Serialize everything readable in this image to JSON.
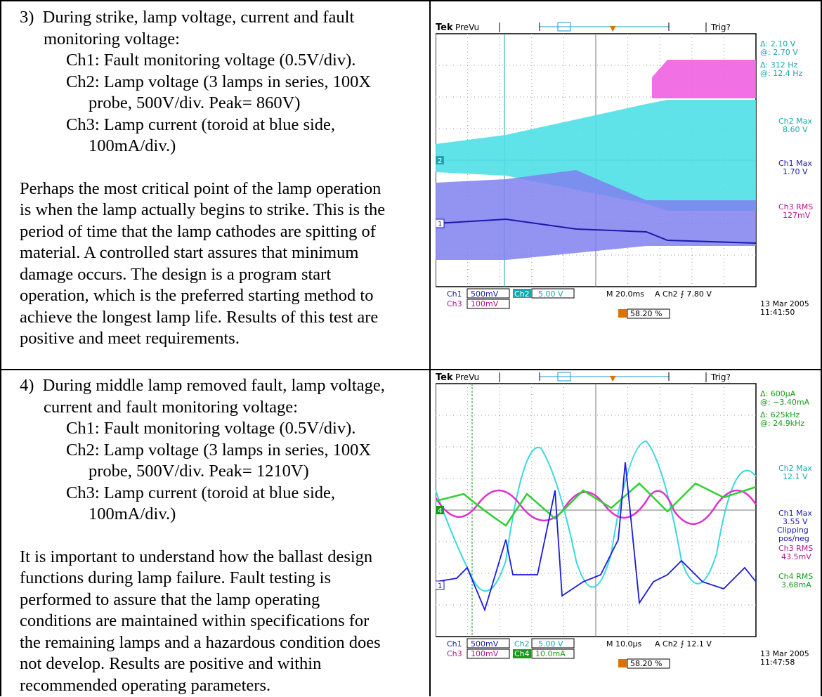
{
  "sections": [
    {
      "heading_num": "3)",
      "heading_l1": "During strike, lamp voltage, current and fault",
      "heading_l2": "monitoring voltage:",
      "ch1": "Ch1: Fault monitoring voltage (0.5V/div).",
      "ch2_l1": "Ch2: Lamp voltage (3 lamps in series, 100X",
      "ch2_l2": "probe, 500V/div. Peak= 860V)",
      "ch3_l1": "Ch3: Lamp current (toroid at blue side,",
      "ch3_l2": "100mA/div.)",
      "para": [
        "Perhaps the most critical point of the lamp operation",
        "is when the lamp actually begins to strike. This is the",
        "period of time that the lamp cathodes are spitting of",
        "material. A controlled start assures that minimum",
        "damage occurs. The design is a program start",
        "operation, which is the preferred starting method to",
        "achieve the longest lamp life.  Results of this test are",
        "positive and meet requirements."
      ],
      "scope": {
        "brand": "Tek",
        "mode": "PreVu",
        "trig": "Trig?",
        "cursor_delta": "Δ:    2.10 V",
        "cursor_at": "@:    2.70 V",
        "freq_delta": "Δ:    312 Hz",
        "freq_at": "@:   12.4 Hz",
        "meas": [
          {
            "label": "Ch2 Max",
            "value": "8.60 V",
            "color": "#1aa7b0"
          },
          {
            "label": "Ch1 Max",
            "value": "1.70 V",
            "color": "#1a1aa8"
          },
          {
            "label": "Ch3 RMS",
            "value": "127mV",
            "color": "#b0168e"
          }
        ],
        "ch1_scale": "500mV",
        "ch2_scale": "5.00 V",
        "ch3_scale": "100mV",
        "ch4_scale": "",
        "timebase": "M 20.0ms",
        "trigger": "A  Ch2  ⨍    7.80 V",
        "position": "58.20 %",
        "date": "13 Mar 2005",
        "time": "11:41:50"
      }
    },
    {
      "heading_num": "4)",
      "heading_l1": "During middle lamp removed fault, lamp voltage,",
      "heading_l2": "current and fault monitoring voltage:",
      "ch1": "Ch1: Fault monitoring voltage (0.5V/div).",
      "ch2_l1": "Ch2: Lamp voltage (3 lamps in series, 100X",
      "ch2_l2": "probe, 500V/div. Peak= 1210V)",
      "ch3_l1": "Ch3: Lamp current (toroid at blue side,",
      "ch3_l2": "100mA/div.)",
      "para": [
        "It is important to understand how the ballast design",
        "functions during lamp failure.  Fault testing is",
        "performed to assure that the lamp operating",
        "conditions are maintained within specifications for",
        "the remaining lamps and a hazardous condition does",
        "not develop.  Results are positive and within",
        "recommended operating parameters."
      ],
      "scope": {
        "brand": "Tek",
        "mode": "PreVu",
        "trig": "Trig?",
        "cursor_delta": "Δ:    600μA",
        "cursor_at": "@:  −3.40mA",
        "freq_delta": "Δ:   625kHz",
        "freq_at": "@:   24.9kHz",
        "meas": [
          {
            "label": "Ch2 Max",
            "value": "12.1 V",
            "color": "#1aa7b0"
          },
          {
            "label": "Ch1 Max",
            "value": "3.55 V",
            "color": "#1a1aa8"
          },
          {
            "label": "Clipping",
            "value": "pos/neg",
            "color": "#1a1aa8"
          },
          {
            "label": "Ch3 RMS",
            "value": "43.5mV",
            "color": "#b0168e"
          },
          {
            "label": "Ch4 RMS",
            "value": "3.68mA",
            "color": "#1a9a1a"
          }
        ],
        "ch1_scale": "500mV",
        "ch2_scale": "5.00 V",
        "ch3_scale": "100mV",
        "ch4_scale": "10.0mA",
        "timebase": "M 10.0μs",
        "trigger": "A  Ch2  ⨍   12.1 V",
        "position": "58.20 %",
        "date": "13 Mar 2005",
        "time": "11:47:58"
      }
    }
  ]
}
